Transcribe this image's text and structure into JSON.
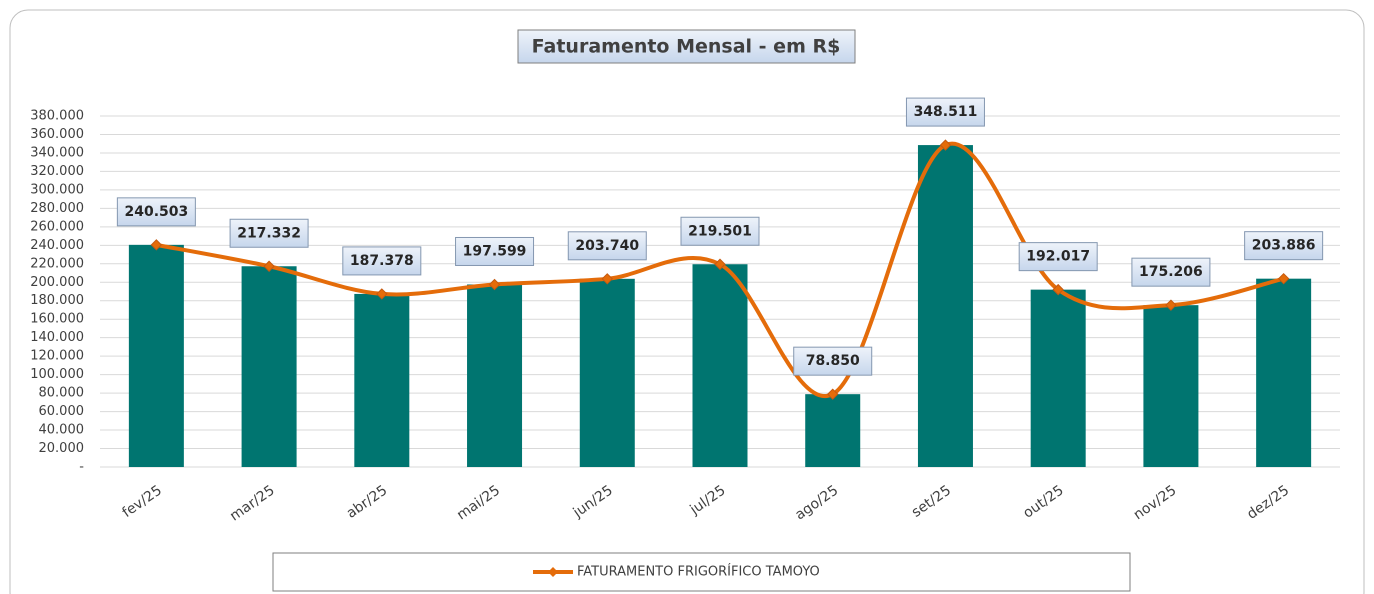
{
  "chart_data": {
    "type": "bar-line",
    "title": "Faturamento Mensal - em R$",
    "categories": [
      "fev/25",
      "mar/25",
      "abr/25",
      "mai/25",
      "jun/25",
      "jul/25",
      "ago/25",
      "set/25",
      "out/25",
      "nov/25",
      "dez/25"
    ],
    "series": [
      {
        "type": "bar",
        "color": "#007570",
        "values": [
          240503,
          217332,
          187378,
          197599,
          203740,
          219501,
          78850,
          348511,
          192017,
          175206,
          203886
        ]
      },
      {
        "type": "line",
        "name": "FATURAMENTO FRIGORÍFICO TAMOYO",
        "color": "#e46c0a",
        "smooth": true,
        "values": [
          240503,
          217332,
          187378,
          197599,
          203740,
          219501,
          78850,
          348511,
          192017,
          175206,
          203886
        ],
        "value_labels": [
          "240.503",
          "217.332",
          "187.378",
          "197.599",
          "203.740",
          "219.501",
          "78.850",
          "348.511",
          "192.017",
          "175.206",
          "203.886"
        ]
      }
    ],
    "ylim": [
      0,
      380000
    ],
    "yticks": [
      {
        "value": 0,
        "label": "-"
      },
      {
        "value": 20000,
        "label": "20.000"
      },
      {
        "value": 40000,
        "label": "40.000"
      },
      {
        "value": 60000,
        "label": "60.000"
      },
      {
        "value": 80000,
        "label": "80.000"
      },
      {
        "value": 100000,
        "label": "100.000"
      },
      {
        "value": 120000,
        "label": "120.000"
      },
      {
        "value": 140000,
        "label": "140.000"
      },
      {
        "value": 160000,
        "label": "160.000"
      },
      {
        "value": 180000,
        "label": "180.000"
      },
      {
        "value": 200000,
        "label": "200.000"
      },
      {
        "value": 220000,
        "label": "220.000"
      },
      {
        "value": 240000,
        "label": "240.000"
      },
      {
        "value": 260000,
        "label": "260.000"
      },
      {
        "value": 280000,
        "label": "280.000"
      },
      {
        "value": 300000,
        "label": "300.000"
      },
      {
        "value": 320000,
        "label": "320.000"
      },
      {
        "value": 340000,
        "label": "340.000"
      },
      {
        "value": 360000,
        "label": "360.000"
      },
      {
        "value": 380000,
        "label": "380.000"
      }
    ],
    "grid": true,
    "legend": "bottom"
  }
}
